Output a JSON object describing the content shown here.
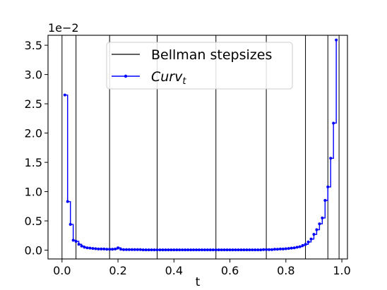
{
  "chart_data": {
    "type": "line",
    "xlabel": "t",
    "ylabel": "",
    "y_offset_text": "1e−2",
    "xlim": [
      -0.05,
      1.02
    ],
    "ylim": [
      -0.15,
      3.67
    ],
    "x_ticks": [
      0.0,
      0.2,
      0.4,
      0.6,
      0.8,
      1.0
    ],
    "x_tick_labels": [
      "0.0",
      "0.2",
      "0.4",
      "0.6",
      "0.8",
      "1.0"
    ],
    "y_ticks": [
      0.0,
      0.5,
      1.0,
      1.5,
      2.0,
      2.5,
      3.0,
      3.5
    ],
    "y_tick_labels": [
      "0.0",
      "0.5",
      "1.0",
      "1.5",
      "2.0",
      "2.5",
      "3.0",
      "3.5"
    ],
    "grid": false,
    "legend_position": "top-center",
    "series": [
      {
        "name": "Bellman stepsizes",
        "color": "#000000",
        "kind": "vlines",
        "x": [
          0.0,
          0.05,
          0.17,
          0.34,
          0.55,
          0.73,
          0.87,
          0.95,
          0.99
        ]
      },
      {
        "name": "Curv",
        "name_subscript": "t",
        "color": "#0000ff",
        "kind": "step-markers",
        "x": [
          0.01,
          0.02,
          0.03,
          0.04,
          0.05,
          0.06,
          0.07,
          0.08,
          0.09,
          0.1,
          0.11,
          0.12,
          0.13,
          0.14,
          0.15,
          0.16,
          0.17,
          0.18,
          0.19,
          0.2,
          0.21,
          0.22,
          0.23,
          0.24,
          0.25,
          0.26,
          0.27,
          0.28,
          0.29,
          0.3,
          0.31,
          0.32,
          0.33,
          0.34,
          0.35,
          0.36,
          0.37,
          0.38,
          0.39,
          0.4,
          0.41,
          0.42,
          0.43,
          0.44,
          0.45,
          0.46,
          0.47,
          0.48,
          0.49,
          0.5,
          0.51,
          0.52,
          0.53,
          0.54,
          0.55,
          0.56,
          0.57,
          0.58,
          0.59,
          0.6,
          0.61,
          0.62,
          0.63,
          0.64,
          0.65,
          0.66,
          0.67,
          0.68,
          0.69,
          0.7,
          0.71,
          0.72,
          0.73,
          0.74,
          0.75,
          0.76,
          0.77,
          0.78,
          0.79,
          0.8,
          0.81,
          0.82,
          0.83,
          0.84,
          0.85,
          0.86,
          0.87,
          0.88,
          0.89,
          0.9,
          0.91,
          0.92,
          0.93,
          0.94,
          0.95,
          0.96,
          0.97,
          0.98
        ],
        "y": [
          2.65,
          0.83,
          0.44,
          0.17,
          0.15,
          0.1,
          0.07,
          0.05,
          0.04,
          0.035,
          0.03,
          0.025,
          0.02,
          0.02,
          0.02,
          0.015,
          0.015,
          0.015,
          0.02,
          0.04,
          0.015,
          0.01,
          0.01,
          0.01,
          0.01,
          0.01,
          0.01,
          0.01,
          0.005,
          0.005,
          0.005,
          0.005,
          0.005,
          0.005,
          0.005,
          0.005,
          0.005,
          0.005,
          0.005,
          0.005,
          0.005,
          0.005,
          0.005,
          0.005,
          0.005,
          0.005,
          0.005,
          0.005,
          0.005,
          0.005,
          0.005,
          0.005,
          0.005,
          0.005,
          0.005,
          0.005,
          0.005,
          0.005,
          0.005,
          0.005,
          0.005,
          0.005,
          0.005,
          0.005,
          0.005,
          0.005,
          0.005,
          0.005,
          0.005,
          0.005,
          0.005,
          0.01,
          0.01,
          0.01,
          0.01,
          0.015,
          0.015,
          0.02,
          0.02,
          0.025,
          0.03,
          0.035,
          0.04,
          0.05,
          0.06,
          0.08,
          0.1,
          0.14,
          0.19,
          0.27,
          0.35,
          0.45,
          0.55,
          0.85,
          1.08,
          1.57,
          2.17,
          3.59
        ]
      }
    ]
  }
}
